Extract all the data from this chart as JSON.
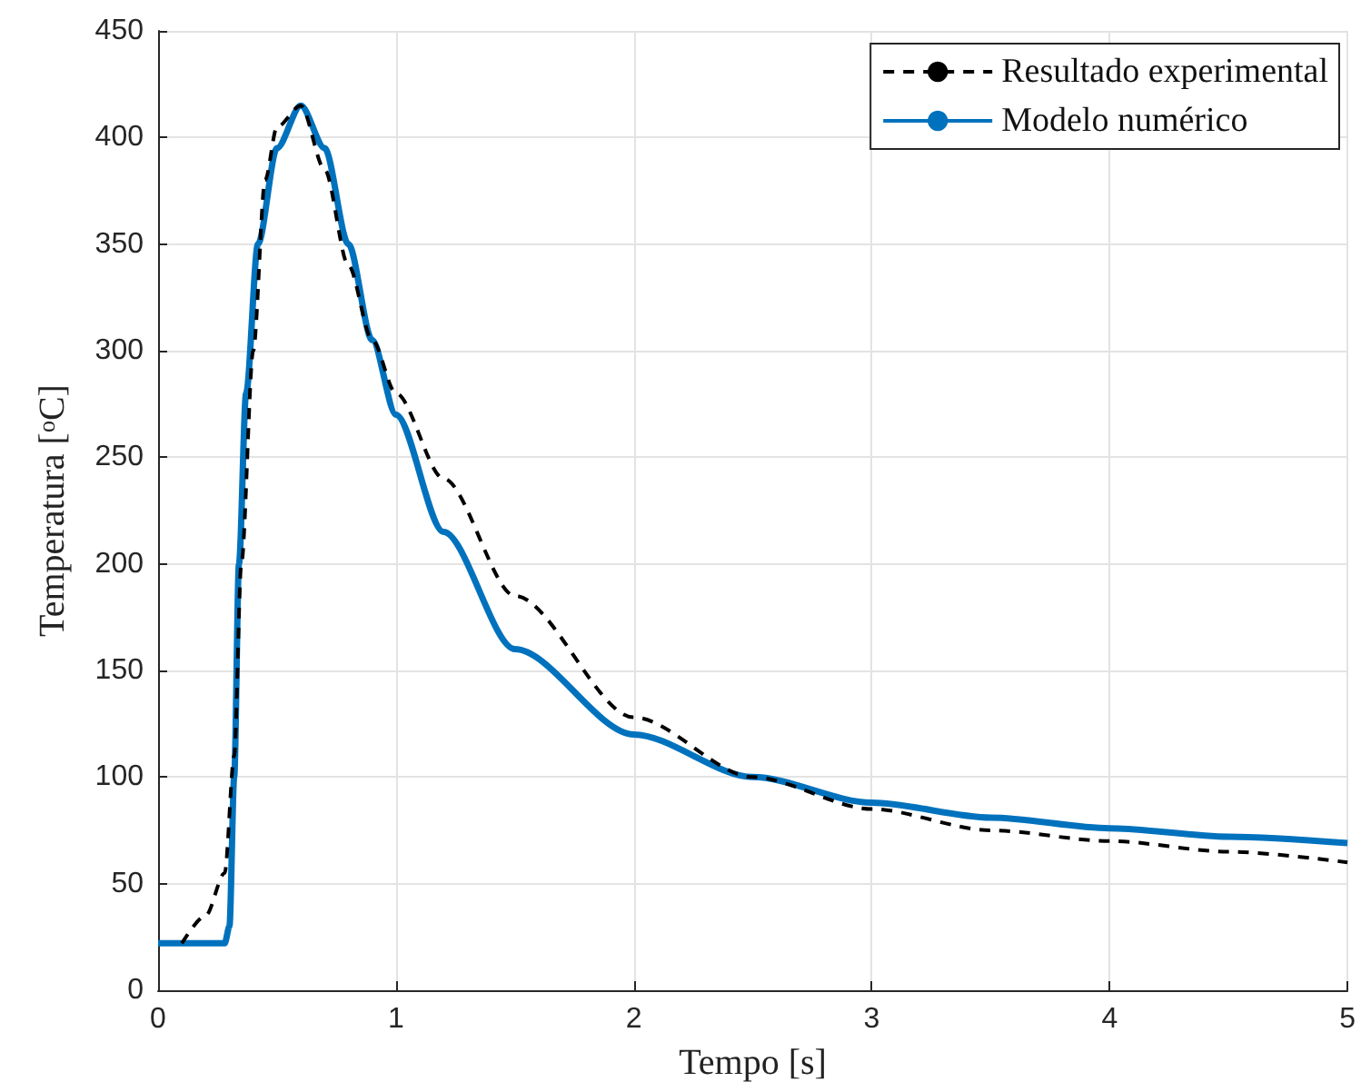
{
  "chart_data": {
    "type": "line",
    "xlabel": "Tempo [s]",
    "ylabel": "Temperatura [$^{o}$C]",
    "xlim": [
      0,
      5
    ],
    "xticks": [
      0,
      1,
      2,
      3,
      4,
      5
    ],
    "ylim": [
      0,
      450
    ],
    "yticks": [
      0,
      50,
      100,
      150,
      200,
      250,
      300,
      350,
      400,
      450
    ],
    "grid": true,
    "legend": "top right",
    "marker": "none",
    "series": [
      {
        "name": "Resultado experimental",
        "color": "#000000",
        "line_style": "dashed",
        "x": [
          0.1,
          0.2,
          0.28,
          0.32,
          0.35,
          0.4,
          0.45,
          0.5,
          0.6,
          0.7,
          0.8,
          0.9,
          1.0,
          1.2,
          1.5,
          2.0,
          2.5,
          3.0,
          3.5,
          4.0,
          4.5,
          5.0
        ],
        "values": [
          22,
          35,
          55,
          110,
          200,
          300,
          380,
          405,
          415,
          385,
          340,
          305,
          280,
          240,
          185,
          128,
          100,
          85,
          75,
          70,
          65,
          60
        ]
      },
      {
        "name": "Modelo numérico",
        "color": "#0072bd",
        "line_style": "solid",
        "x": [
          0,
          0.28,
          0.3,
          0.32,
          0.34,
          0.37,
          0.42,
          0.5,
          0.6,
          0.7,
          0.8,
          0.9,
          1.0,
          1.2,
          1.5,
          2.0,
          2.5,
          3.0,
          3.5,
          4.0,
          4.5,
          5.0
        ],
        "values": [
          22,
          22,
          30,
          100,
          200,
          280,
          350,
          395,
          415,
          395,
          350,
          305,
          270,
          215,
          160,
          120,
          100,
          88,
          81,
          76,
          72,
          69
        ]
      }
    ]
  }
}
